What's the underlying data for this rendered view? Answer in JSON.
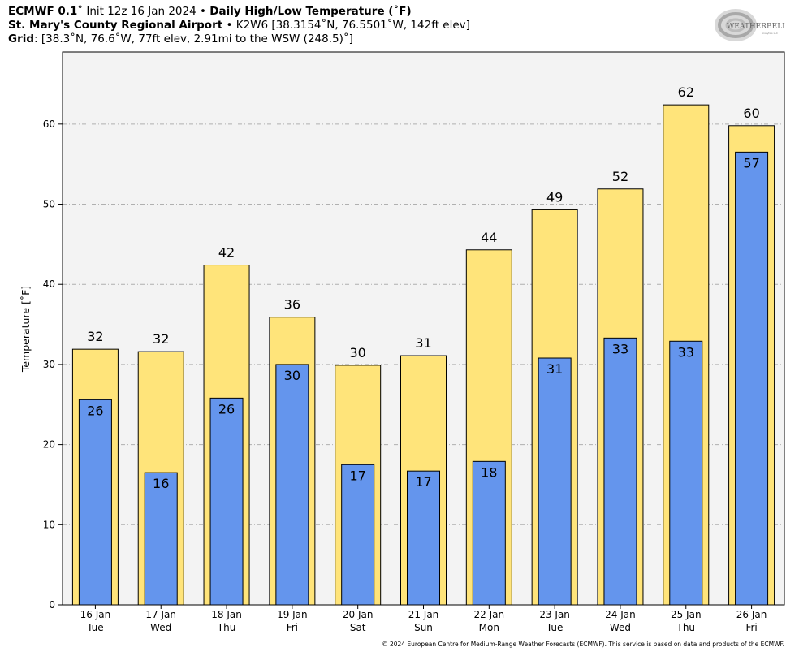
{
  "header": {
    "line1": {
      "model": "ECMWF 0.1˚",
      "init": " Init 12z 16 Jan 2024 • ",
      "product": "Daily High/Low Temperature (˚F)"
    },
    "line2": {
      "station": "St. Mary's County Regional Airport",
      "detail": " • K2W6 [38.3154˚N, 76.5501˚W, 142ft elev]"
    },
    "line3": {
      "label": "Grid",
      "detail": ": [38.3˚N, 76.6˚W, 77ft elev, 2.91mi to the WSW (248.5)˚]"
    }
  },
  "logo": {
    "text_main": "WEATHERBELL",
    "text_sub": "Analytics LLC"
  },
  "footer": {
    "copyright": "© 2024 European Centre for Medium-Range Weather Forecasts (ECMWF). This service is based on data and products of the ECMWF."
  },
  "colors": {
    "high": "#ffe47a",
    "low": "#6495ed",
    "plot_bg": "#f3f3f3",
    "grid": "#b0b0b0"
  },
  "chart_data": {
    "type": "bar",
    "title": "Daily High/Low Temperature (˚F)",
    "ylabel": "Temperature [˚F]",
    "ylim": [
      0,
      69
    ],
    "yticks": [
      0,
      10,
      20,
      30,
      40,
      50,
      60
    ],
    "grid": true,
    "categories": [
      [
        "16 Jan",
        "Tue"
      ],
      [
        "17 Jan",
        "Wed"
      ],
      [
        "18 Jan",
        "Thu"
      ],
      [
        "19 Jan",
        "Fri"
      ],
      [
        "20 Jan",
        "Sat"
      ],
      [
        "21 Jan",
        "Sun"
      ],
      [
        "22 Jan",
        "Mon"
      ],
      [
        "23 Jan",
        "Tue"
      ],
      [
        "24 Jan",
        "Wed"
      ],
      [
        "25 Jan",
        "Thu"
      ],
      [
        "26 Jan",
        "Fri"
      ]
    ],
    "series": [
      {
        "key": "high",
        "values": [
          31.9,
          31.6,
          42.4,
          35.9,
          29.9,
          31.1,
          44.3,
          49.3,
          51.9,
          62.4,
          59.8
        ],
        "labels": [
          "32",
          "32",
          "42",
          "36",
          "30",
          "31",
          "44",
          "49",
          "52",
          "62",
          "60"
        ]
      },
      {
        "key": "low",
        "values": [
          25.6,
          16.5,
          25.8,
          30.0,
          17.5,
          16.7,
          17.9,
          30.8,
          33.3,
          32.9,
          56.5
        ],
        "labels": [
          "26",
          "16",
          "26",
          "30",
          "17",
          "17",
          "18",
          "31",
          "33",
          "33",
          "57"
        ]
      }
    ]
  }
}
